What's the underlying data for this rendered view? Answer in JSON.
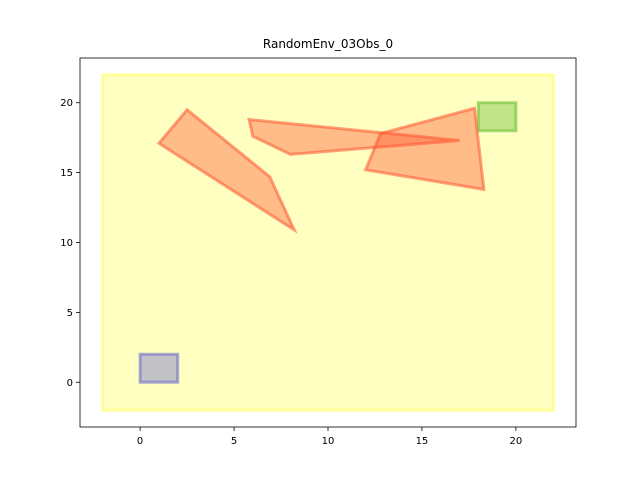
{
  "chart_data": {
    "type": "scatter",
    "title": "RandomEnv_03Obs_0",
    "xlabel": "",
    "ylabel": "",
    "xlim": [
      -3.2,
      23.2
    ],
    "ylim": [
      -3.2,
      23.2
    ],
    "xticks": [
      0,
      5,
      10,
      15,
      20
    ],
    "yticks": [
      0,
      5,
      10,
      15,
      20
    ],
    "grid": false,
    "regions": [
      {
        "name": "environment",
        "color": "#ffff66",
        "opacity": 0.4,
        "points": [
          [
            -2,
            -2
          ],
          [
            22,
            -2
          ],
          [
            22,
            22
          ],
          [
            -2,
            22
          ]
        ]
      },
      {
        "name": "start",
        "color": "#6666cc",
        "opacity": 0.4,
        "points": [
          [
            0,
            0
          ],
          [
            2,
            0
          ],
          [
            2,
            2
          ],
          [
            0,
            2
          ]
        ]
      },
      {
        "name": "goal",
        "color": "#66bb33",
        "opacity": 0.4,
        "points": [
          [
            18,
            18
          ],
          [
            20,
            18
          ],
          [
            20,
            20
          ],
          [
            18,
            20
          ]
        ]
      },
      {
        "name": "obstacle-1",
        "color": "#ff5533",
        "opacity": 0.4,
        "points": [
          [
            1,
            17.1
          ],
          [
            2.5,
            19.5
          ],
          [
            6.9,
            14.7
          ],
          [
            8.2,
            10.9
          ]
        ]
      },
      {
        "name": "obstacle-2",
        "color": "#ff5533",
        "opacity": 0.4,
        "points": [
          [
            5.8,
            18.8
          ],
          [
            6,
            17.6
          ],
          [
            8,
            16.3
          ],
          [
            17,
            17.3
          ]
        ]
      },
      {
        "name": "obstacle-3",
        "color": "#ff5533",
        "opacity": 0.4,
        "points": [
          [
            12.8,
            17.8
          ],
          [
            17.8,
            19.6
          ],
          [
            18.3,
            13.8
          ],
          [
            12,
            15.2
          ]
        ]
      }
    ]
  }
}
